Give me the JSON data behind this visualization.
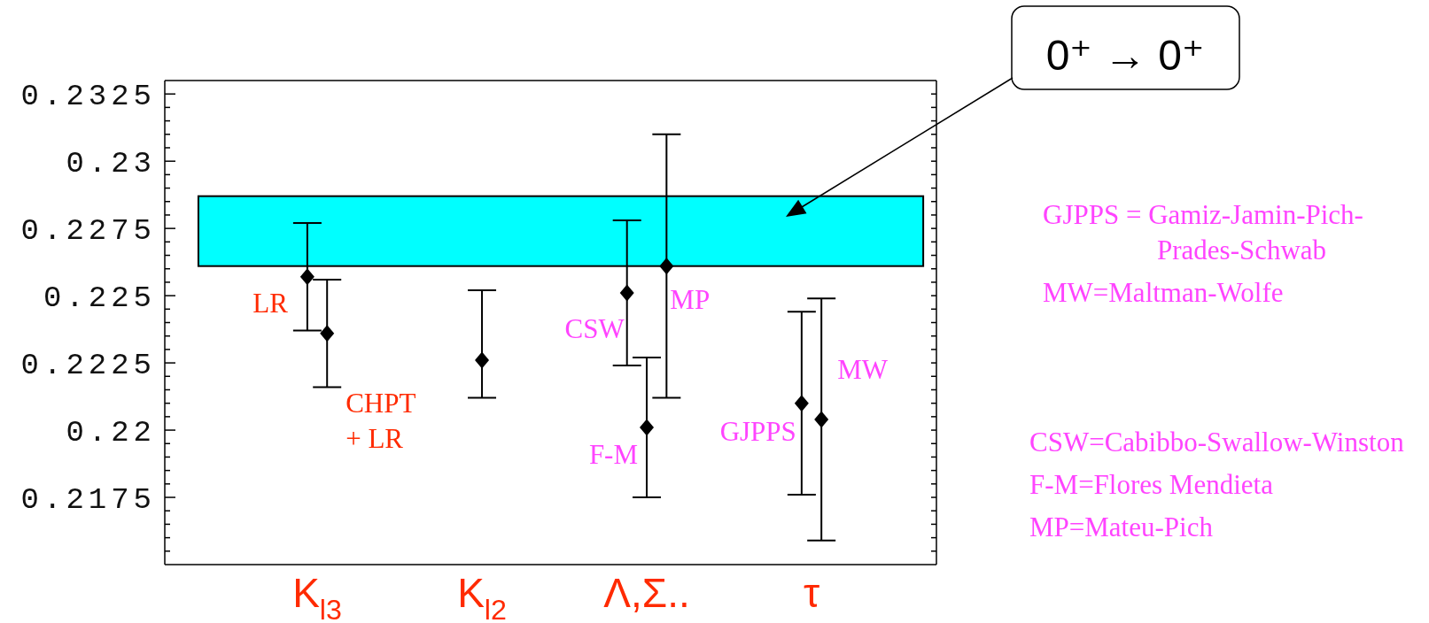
{
  "chart_data": {
    "type": "scatter",
    "categories": [
      "K$_{l3}$",
      "K$_{l2}$",
      "Λ,Σ..",
      "τ"
    ],
    "series": [
      {
        "name": "LR",
        "color": "#000000",
        "values": [
          0.2257,
          null,
          null,
          null
        ],
        "errors": [
          0.002,
          null,
          null,
          null
        ]
      },
      {
        "name": "CHPT\n+ LR",
        "color": "#000000",
        "values": [
          0.2236,
          null,
          null,
          null
        ],
        "errors": [
          0.002,
          null,
          null,
          null
        ]
      },
      {
        "color": "#000000",
        "values": [
          null,
          0.2226,
          null,
          null
        ],
        "errors": [
          null,
          [
            0.2212,
            0.2252
          ],
          null,
          null
        ]
      },
      {
        "name": "CSW",
        "color": "#000000",
        "values": [
          null,
          null,
          0.2251,
          null
        ],
        "errors": [
          null,
          null,
          0.0027,
          null
        ]
      },
      {
        "name": "F-M",
        "color": "#000000",
        "values": [
          null,
          null,
          0.2201,
          null
        ],
        "errors": [
          null,
          null,
          0.0026,
          null
        ]
      },
      {
        "name": "MP",
        "color": "#000000",
        "values": [
          null,
          null,
          0.2261,
          null
        ],
        "errors": [
          null,
          null,
          0.0049,
          null
        ]
      },
      {
        "name": "GJPPS",
        "color": "#000000",
        "values": [
          null,
          null,
          null,
          0.221
        ],
        "errors": [
          null,
          null,
          null,
          0.0034
        ]
      },
      {
        "name": "MW",
        "color": "#000000",
        "values": [
          null,
          null,
          null,
          0.2204
        ],
        "errors": [
          null,
          null,
          null,
          0.0045
        ]
      }
    ],
    "ylim": [
      0.215,
      0.233
    ],
    "yticks": [
      {
        "value": 0.2155,
        "label": null
      },
      {
        "value": 0.216,
        "label": null
      },
      {
        "value": 0.2165,
        "label": null
      },
      {
        "value": 0.217,
        "label": null
      },
      0.2175,
      {
        "value": 0.218,
        "label": null
      },
      {
        "value": 0.2185,
        "label": null
      },
      {
        "value": 0.219,
        "label": null
      },
      {
        "value": 0.2195,
        "label": null
      },
      0.22,
      {
        "value": 0.2205,
        "label": null
      },
      {
        "value": 0.221,
        "label": null
      },
      {
        "value": 0.2215,
        "label": null
      },
      {
        "value": 0.222,
        "label": null
      },
      0.2225,
      {
        "value": 0.223,
        "label": null
      },
      {
        "value": 0.2235,
        "label": null
      },
      {
        "value": 0.224,
        "label": null
      },
      {
        "value": 0.2245,
        "label": null
      },
      0.225,
      {
        "value": 0.2255,
        "label": null
      },
      {
        "value": 0.226,
        "label": null
      },
      {
        "value": 0.2265,
        "label": null
      },
      {
        "value": 0.227,
        "label": null
      },
      0.2275,
      {
        "value": 0.228,
        "label": null
      },
      {
        "value": 0.2285,
        "label": null
      },
      {
        "value": 0.229,
        "label": null
      },
      {
        "value": 0.2295,
        "label": null
      },
      0.23,
      {
        "value": 0.2305,
        "label": null
      },
      {
        "value": 0.231,
        "label": null
      },
      {
        "value": 0.2315,
        "label": null
      },
      {
        "value": 0.232,
        "label": null
      },
      0.2325
    ],
    "marker": "diamond",
    "bands": [
      {
        "axis": "y",
        "from": 0.2261,
        "to": 0.2287,
        "label": "0⁺ → 0⁺",
        "color": "#00ffff"
      }
    ],
    "annotations": [
      "GJPPS = Gamiz-Jamin-Pich-\nPrades-Schwab",
      "MW=Maltman-Wolfe",
      "CSW=Cabibbo-Swallow-Winston",
      "F-M=Flores Mendieta",
      "MP=Mateu-Pich"
    ]
  }
}
